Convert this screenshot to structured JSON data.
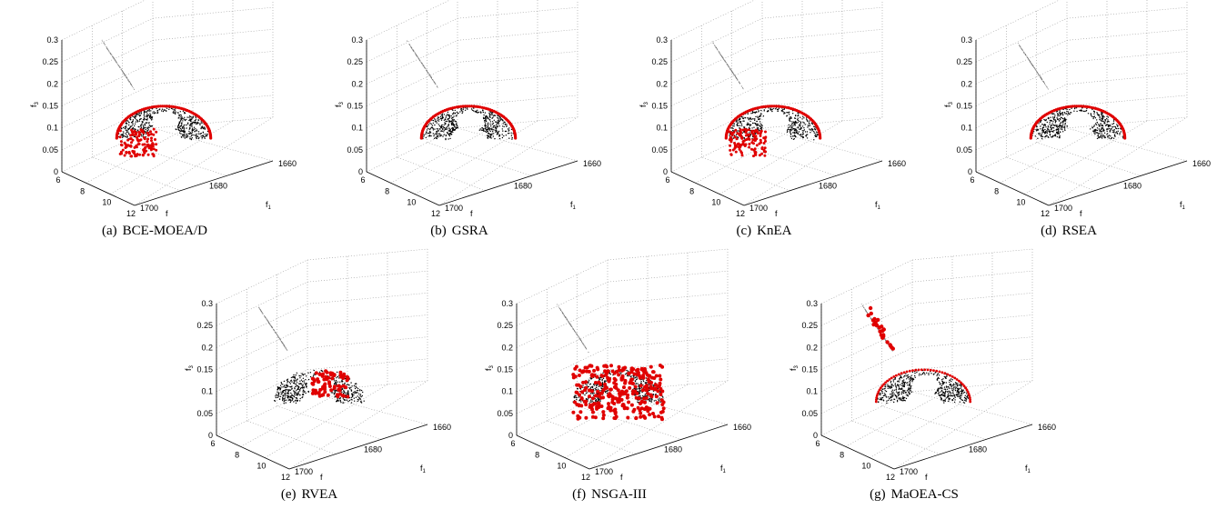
{
  "figure": {
    "panels": [
      {
        "letter": "(a)",
        "name": "BCE-MOEA/D",
        "red": "front"
      },
      {
        "letter": "(b)",
        "name": "GSRA",
        "red": "edge"
      },
      {
        "letter": "(c)",
        "name": "KnEA",
        "red": "front"
      },
      {
        "letter": "(d)",
        "name": "RSEA",
        "red": "edge"
      },
      {
        "letter": "(e)",
        "name": "RVEA",
        "red": "partial"
      },
      {
        "letter": "(f)",
        "name": "NSGA-III",
        "red": "dense"
      },
      {
        "letter": "(g)",
        "name": "MaOEA-CS",
        "red": "cs"
      }
    ]
  },
  "axes": {
    "f3_label": "f",
    "f3_sub": "3",
    "f1_label": "f",
    "f1_sub": "1",
    "f2_label": "f",
    "f3_ticks": [
      "0",
      "0.05",
      "0.1",
      "0.15",
      "0.2",
      "0.25",
      "0.3"
    ],
    "f2_ticks": [
      "6",
      "8",
      "10",
      "12"
    ],
    "f1_ticks": [
      "1660",
      "1680",
      "1700"
    ]
  },
  "chart_data": {
    "type": "scatter",
    "axes": {
      "x": "f2",
      "y": "f1",
      "z": "f3"
    },
    "xlim": [
      6,
      12
    ],
    "ylim": [
      1660,
      1700
    ],
    "zlim": [
      0,
      0.3
    ],
    "grid": true,
    "series": [
      {
        "color": "#000000",
        "description": "true Pareto front, near region",
        "x_range": [
          8.5,
          11.0
        ],
        "y_range": [
          1665,
          1690
        ],
        "z_range": [
          0.08,
          0.15
        ]
      },
      {
        "color": "#9a9a9a",
        "description": "true Pareto front, far region",
        "x_range": [
          6.8,
          8.2
        ],
        "y_range": [
          1665,
          1680
        ],
        "z_range": [
          0.18,
          0.3
        ]
      },
      {
        "color": "#e00000",
        "description": "obtained solution set"
      }
    ]
  }
}
